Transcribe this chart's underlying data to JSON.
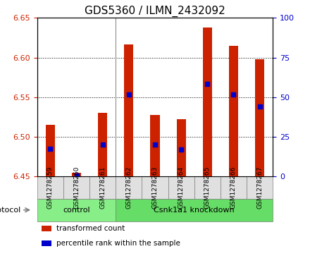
{
  "title": "GDS5360 / ILMN_2432092",
  "samples": [
    "GSM1278259",
    "GSM1278260",
    "GSM1278261",
    "GSM1278262",
    "GSM1278263",
    "GSM1278264",
    "GSM1278265",
    "GSM1278266",
    "GSM1278267"
  ],
  "bar_tops": [
    6.515,
    6.455,
    6.53,
    6.617,
    6.528,
    6.522,
    6.638,
    6.615,
    6.598
  ],
  "bar_bottom": 6.45,
  "blue_dots": [
    6.485,
    6.451,
    6.49,
    6.553,
    6.49,
    6.484,
    6.567,
    6.553,
    6.538
  ],
  "ylim": [
    6.45,
    6.65
  ],
  "yticks_left": [
    6.45,
    6.5,
    6.55,
    6.6,
    6.65
  ],
  "yticks_right": [
    0,
    25,
    50,
    75,
    100
  ],
  "bar_color": "#cc2200",
  "dot_color": "#0000cc",
  "groups": [
    {
      "label": "control",
      "indices": [
        0,
        1,
        2
      ],
      "color": "#88ee88"
    },
    {
      "label": "Csnk1a1 knockdown",
      "indices": [
        3,
        4,
        5,
        6,
        7,
        8
      ],
      "color": "#66dd66"
    }
  ],
  "protocol_label": "protocol",
  "legend_items": [
    {
      "label": "transformed count",
      "color": "#cc2200"
    },
    {
      "label": "percentile rank within the sample",
      "color": "#0000cc"
    }
  ],
  "title_fontsize": 11,
  "tick_fontsize": 8,
  "bg_color": "#e0e0e0",
  "plot_bg": "#ffffff"
}
